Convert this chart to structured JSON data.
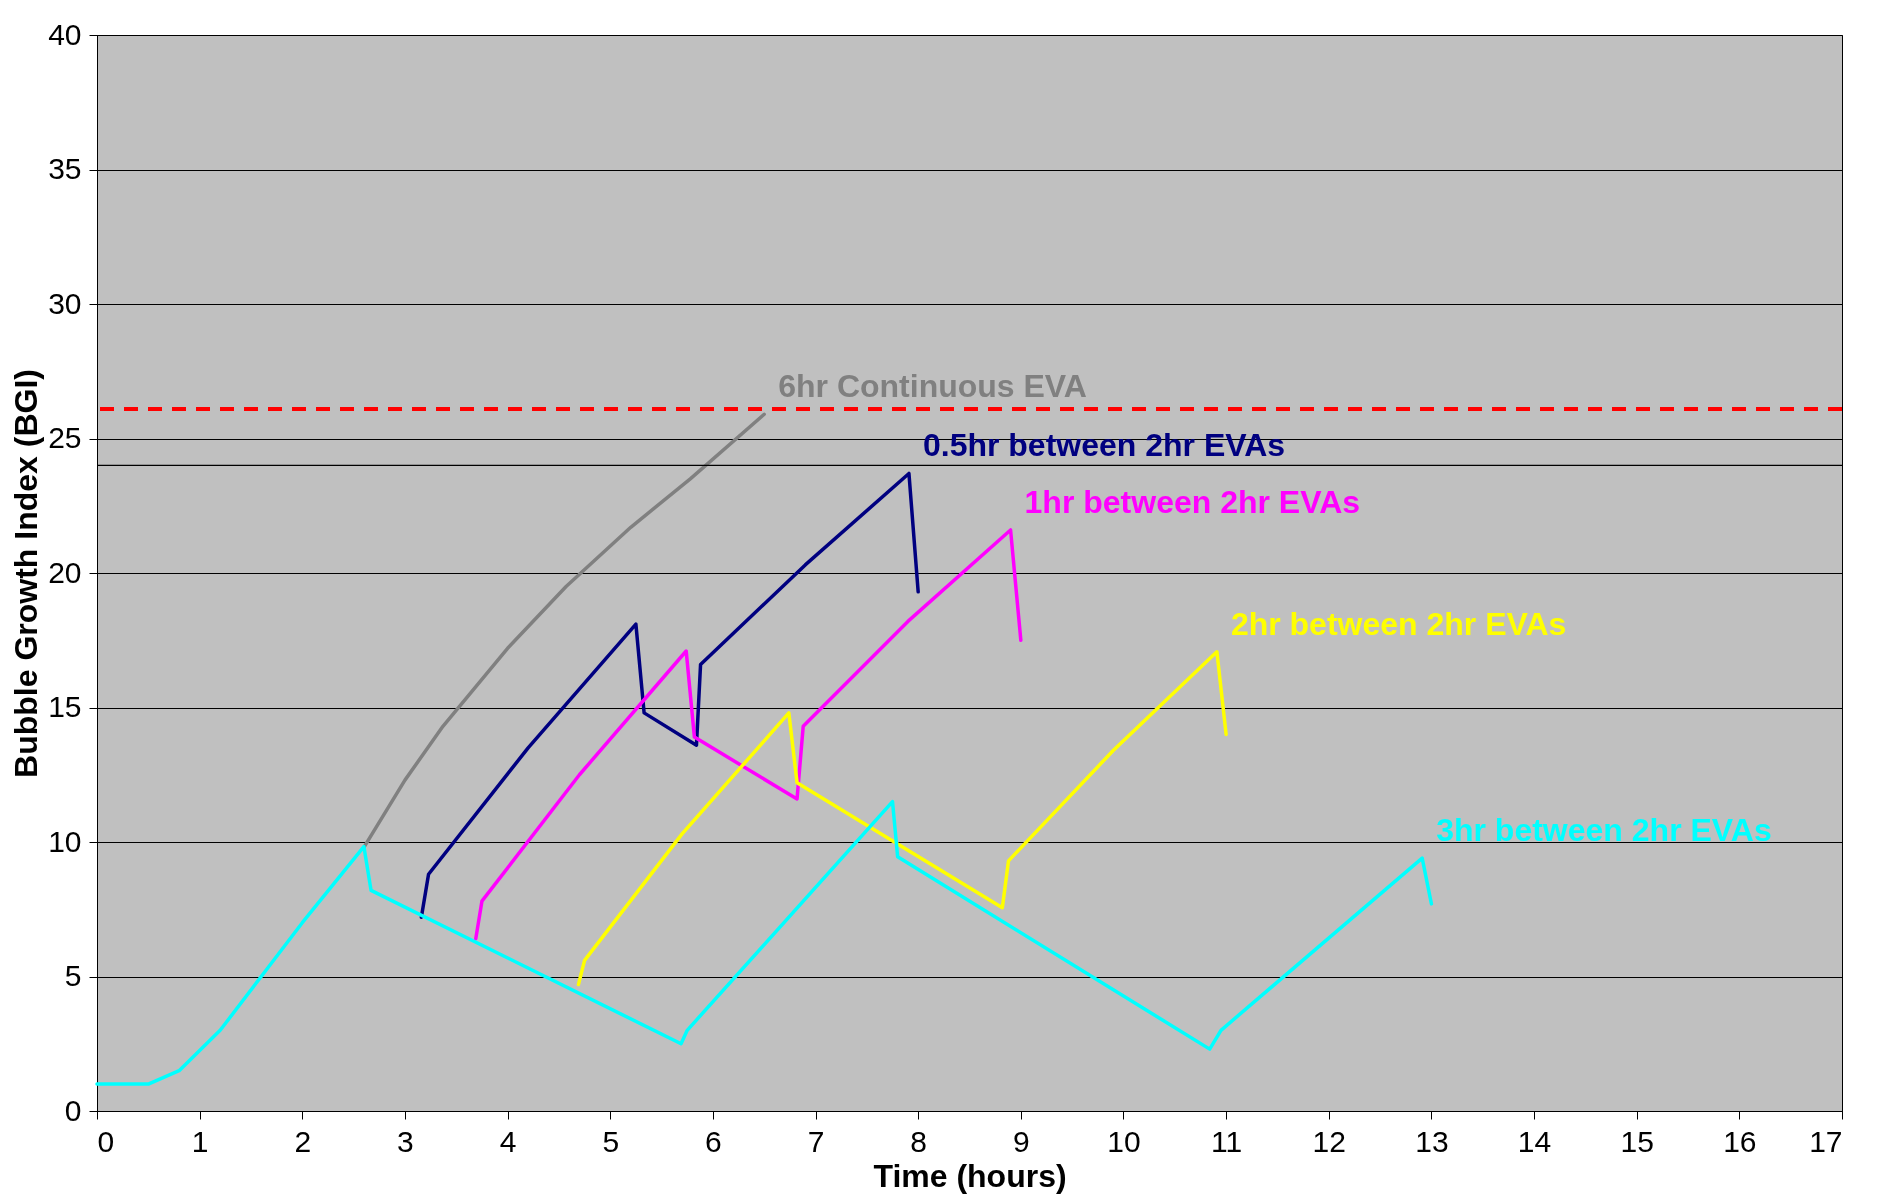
{
  "chart_data": {
    "type": "line",
    "xlabel": "Time (hours)",
    "ylabel": "Bubble Growth Index (BGI)",
    "xlim": [
      0,
      17
    ],
    "xticks": [
      0,
      1,
      2,
      3,
      4,
      5,
      6,
      7,
      8,
      9,
      10,
      11,
      12,
      13,
      14,
      15,
      16,
      17
    ],
    "ylim": [
      0,
      40
    ],
    "yticks": [
      0,
      5,
      10,
      15,
      20,
      25,
      30,
      35,
      40
    ],
    "grid": "y",
    "legend": false,
    "marker": "none",
    "line_style": "solid",
    "ref_lines": [
      {
        "axis": "y",
        "value": 26.1,
        "color": "#ff0000",
        "line_style": "dashed"
      },
      {
        "axis": "y",
        "value": 24,
        "color": "#000000",
        "line_style": "solid"
      }
    ],
    "series": [
      {
        "name": "6hr Continuous EVA",
        "color": "#808080",
        "x": [
          2.6,
          3.0,
          3.37,
          4.0,
          4.57,
          5.2,
          5.78,
          6.5
        ],
        "values": [
          9.8,
          12.3,
          14.3,
          17.2,
          19.5,
          21.7,
          23.5,
          25.9
        ]
      },
      {
        "name": "0.5hr between 2hr EVAs",
        "color": "#000080",
        "x": [
          3.16,
          3.23,
          4.2,
          5.25,
          5.33,
          5.84,
          5.88,
          6.9,
          7.91,
          8.0
        ],
        "values": [
          7.2,
          8.8,
          13.5,
          18.1,
          14.8,
          13.6,
          16.6,
          20.3,
          23.7,
          19.3
        ]
      },
      {
        "name": "1hr between 2hr EVAs",
        "color": "#ff00ff",
        "x": [
          3.69,
          3.75,
          4.7,
          5.74,
          5.82,
          6.82,
          6.88,
          7.9,
          8.9,
          9.0
        ],
        "values": [
          6.4,
          7.8,
          12.5,
          17.1,
          13.9,
          11.6,
          14.3,
          18.2,
          21.6,
          17.5
        ]
      },
      {
        "name": "2hr between 2hr EVAs",
        "color": "#ffff00",
        "x": [
          4.69,
          4.75,
          5.7,
          6.74,
          6.82,
          8.82,
          8.88,
          9.9,
          10.91,
          11.0
        ],
        "values": [
          4.7,
          5.6,
          10.3,
          14.8,
          12.2,
          7.56,
          9.3,
          13.4,
          17.07,
          14.0
        ]
      },
      {
        "name": "3hr between 2hr EVAs",
        "color": "#00ffff",
        "x": [
          0,
          0.5,
          0.8,
          1.2,
          1.6,
          2.0,
          2.6,
          2.67,
          5.69,
          5.75,
          7.75,
          7.8,
          10.84,
          10.95,
          12.91,
          13.0
        ],
        "values": [
          1,
          1,
          1.5,
          3,
          5,
          7,
          9.83,
          8.2,
          2.5,
          3.0,
          11.5,
          9.45,
          2.3,
          3.0,
          9.4,
          7.7
        ]
      }
    ]
  }
}
